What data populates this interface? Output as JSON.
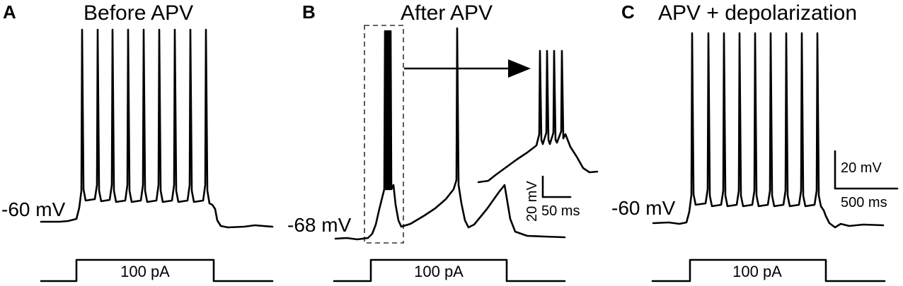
{
  "panels": [
    {
      "letter": "A",
      "title": "Before APV",
      "resting_potential": "-60 mV",
      "stimulus": "100 pA"
    },
    {
      "letter": "B",
      "title": "After APV",
      "resting_potential": "-68 mV",
      "stimulus": "100 pA"
    },
    {
      "letter": "C",
      "title": "APV + depolarization",
      "resting_potential": "-60 mV",
      "stimulus": "100 pA"
    }
  ],
  "inset_scale": {
    "voltage": "20 mV",
    "time": "50 ms"
  },
  "main_scale": {
    "voltage": "20 mV",
    "time": "500 ms"
  }
}
